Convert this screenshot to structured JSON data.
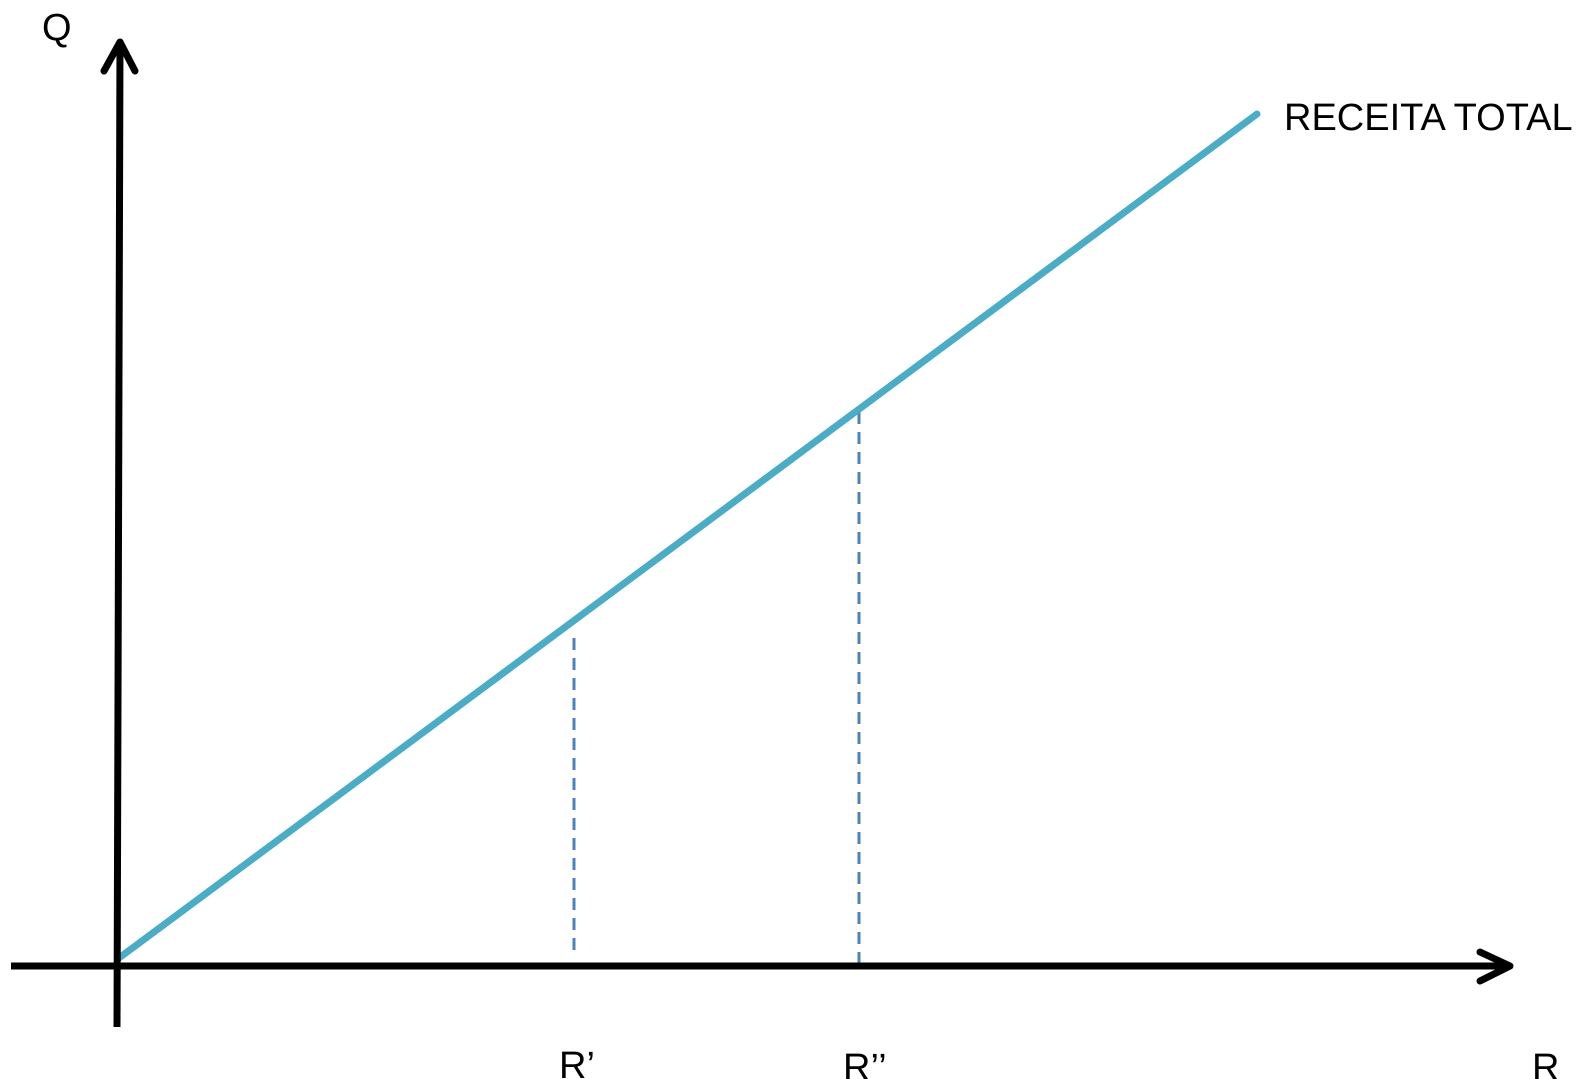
{
  "axes": {
    "y_label": "Q",
    "x_label": "R"
  },
  "line": {
    "label": "RECEITA TOTAL",
    "color": "#4bacc6"
  },
  "markers": {
    "first_label": "R’",
    "second_label": "R’’",
    "color": "#4f81bd"
  },
  "axis_color": "#000000"
}
